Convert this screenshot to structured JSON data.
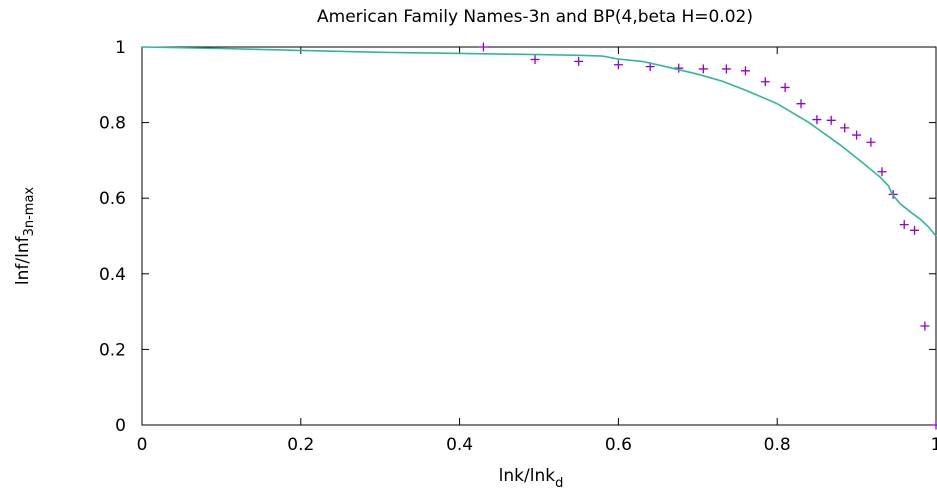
{
  "chart_data": {
    "type": "scatter",
    "title": "American Family Names-3n and BP(4,beta H=0.02)",
    "xlabel_main": "lnk/lnk",
    "xlabel_sub": "d",
    "ylabel_main": "lnf/lnf",
    "ylabel_sub": "3n-max",
    "xlim": [
      0,
      1
    ],
    "ylim": [
      0,
      1
    ],
    "x_ticks": [
      "0",
      "0.2",
      "0.4",
      "0.6",
      "0.8",
      "1"
    ],
    "y_ticks": [
      "0",
      "0.2",
      "0.4",
      "0.6",
      "0.8",
      "1"
    ],
    "grid": false,
    "colors": {
      "points": "#9400d3",
      "curve": "#2eb89a"
    },
    "series": [
      {
        "kind": "points",
        "marker": "plus",
        "x": [
          0.43,
          0.495,
          0.55,
          0.6,
          0.64,
          0.676,
          0.707,
          0.736,
          0.76,
          0.785,
          0.81,
          0.83,
          0.85,
          0.868,
          0.885,
          0.9,
          0.918,
          0.932,
          0.946,
          0.96,
          0.973,
          0.986,
          1.0
        ],
        "y": [
          1.0,
          0.967,
          0.962,
          0.953,
          0.948,
          0.944,
          0.942,
          0.942,
          0.937,
          0.908,
          0.893,
          0.85,
          0.808,
          0.806,
          0.786,
          0.767,
          0.748,
          0.67,
          0.61,
          0.53,
          0.515,
          0.262,
          0.0
        ]
      },
      {
        "kind": "curve",
        "x": [
          0,
          0.1,
          0.2,
          0.3,
          0.4,
          0.5,
          0.55,
          0.58,
          0.6,
          0.63,
          0.66,
          0.7,
          0.73,
          0.76,
          0.8,
          0.84,
          0.88,
          0.91,
          0.93,
          0.94,
          0.945,
          0.955,
          0.97,
          0.98,
          0.99,
          1.0
        ],
        "y": [
          1.0,
          0.996,
          0.991,
          0.986,
          0.983,
          0.98,
          0.978,
          0.976,
          0.968,
          0.962,
          0.948,
          0.928,
          0.91,
          0.886,
          0.85,
          0.8,
          0.74,
          0.69,
          0.655,
          0.633,
          0.61,
          0.585,
          0.56,
          0.545,
          0.525,
          0.5
        ]
      }
    ]
  }
}
